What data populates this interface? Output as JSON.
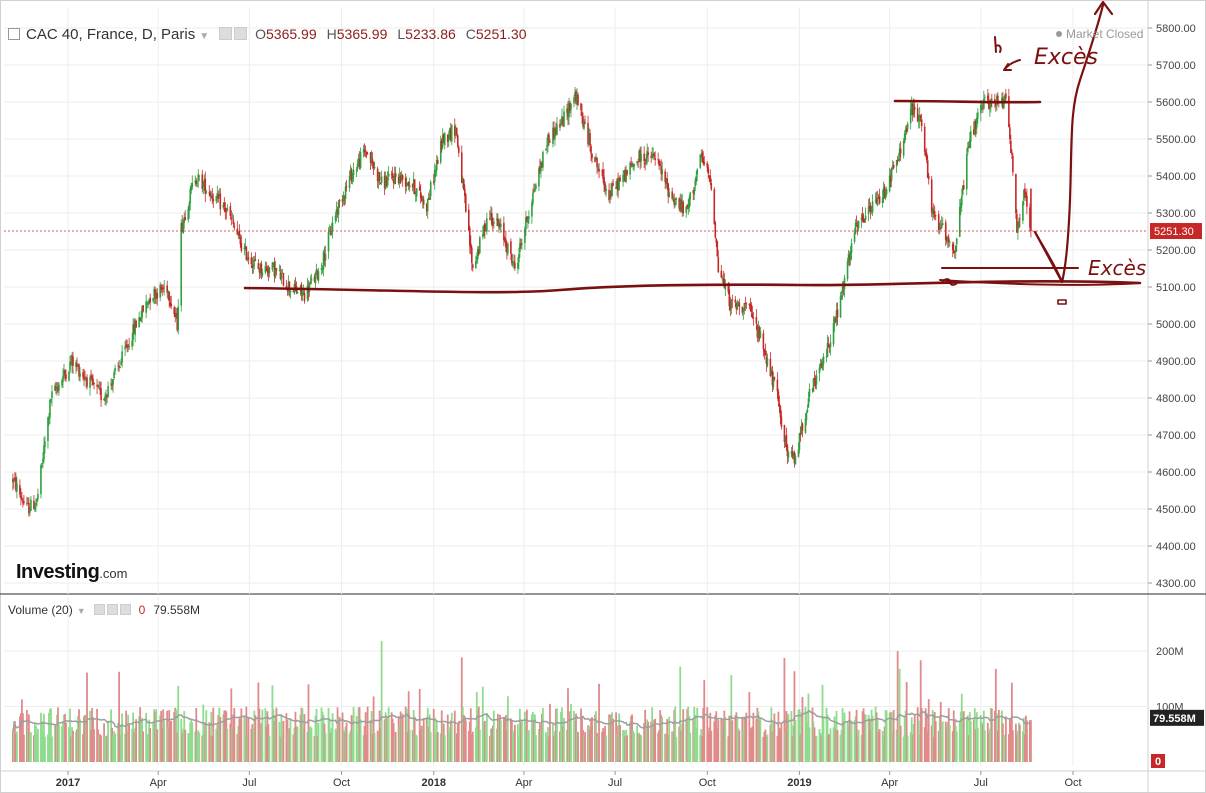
{
  "header": {
    "symbol": "CAC 40, France, D, Paris",
    "open_label": "O",
    "open": "5365.99",
    "high_label": "H",
    "high": "5365.99",
    "low_label": "L",
    "low": "5233.86",
    "close_label": "C",
    "close": "5251.30",
    "market_status": "Market Closed"
  },
  "volume_header": {
    "label": "Volume (20)",
    "zero": "0",
    "value": "79.558M"
  },
  "logo": {
    "name": "Investing",
    "domain": ".com"
  },
  "colors": {
    "up": "#2e9e3e",
    "down": "#c62828",
    "vol_up": "#8fdc8f",
    "vol_down": "#e08a8a",
    "ma": "#9e9e9e",
    "annotation": "#7b1010",
    "price_line": "#c62828"
  },
  "chart_data": {
    "type": "candlestick",
    "ylim": [
      4250,
      5850
    ],
    "y_ticks": [
      "5800.00",
      "5700.00",
      "5600.00",
      "5500.00",
      "5400.00",
      "5300.00",
      "5200.00",
      "5100.00",
      "5000.00",
      "4900.00",
      "4800.00",
      "4700.00",
      "4600.00",
      "4500.00",
      "4400.00",
      "4300.00"
    ],
    "x_ticks": [
      "2017",
      "Apr",
      "Jul",
      "Oct",
      "2018",
      "Apr",
      "Jul",
      "Oct",
      "2019",
      "Apr",
      "Jul",
      "Oct"
    ],
    "last_price": "5251.30",
    "price_path": [
      [
        "2016-11-07",
        4580
      ],
      [
        "2016-11-21",
        4500
      ],
      [
        "2016-12-01",
        4520
      ],
      [
        "2016-12-15",
        4800
      ],
      [
        "2017-01-05",
        4900
      ],
      [
        "2017-01-20",
        4850
      ],
      [
        "2017-02-05",
        4800
      ],
      [
        "2017-02-20",
        4880
      ],
      [
        "2017-03-10",
        5000
      ],
      [
        "2017-03-25",
        5080
      ],
      [
        "2017-04-10",
        5100
      ],
      [
        "2017-04-20",
        5000
      ],
      [
        "2017-04-24",
        5260
      ],
      [
        "2017-05-08",
        5400
      ],
      [
        "2017-05-25",
        5350
      ],
      [
        "2017-06-10",
        5300
      ],
      [
        "2017-06-25",
        5200
      ],
      [
        "2017-07-10",
        5150
      ],
      [
        "2017-07-25",
        5150
      ],
      [
        "2017-08-10",
        5100
      ],
      [
        "2017-08-25",
        5080
      ],
      [
        "2017-09-10",
        5150
      ],
      [
        "2017-09-25",
        5300
      ],
      [
        "2017-10-10",
        5400
      ],
      [
        "2017-10-25",
        5470
      ],
      [
        "2017-11-10",
        5380
      ],
      [
        "2017-11-25",
        5400
      ],
      [
        "2017-12-10",
        5380
      ],
      [
        "2017-12-25",
        5320
      ],
      [
        "2018-01-10",
        5500
      ],
      [
        "2018-01-23",
        5530
      ],
      [
        "2018-02-09",
        5150
      ],
      [
        "2018-02-25",
        5300
      ],
      [
        "2018-03-10",
        5250
      ],
      [
        "2018-03-23",
        5150
      ],
      [
        "2018-04-10",
        5350
      ],
      [
        "2018-04-25",
        5500
      ],
      [
        "2018-05-10",
        5550
      ],
      [
        "2018-05-22",
        5620
      ],
      [
        "2018-06-10",
        5450
      ],
      [
        "2018-06-25",
        5350
      ],
      [
        "2018-07-10",
        5400
      ],
      [
        "2018-07-25",
        5450
      ],
      [
        "2018-08-10",
        5450
      ],
      [
        "2018-08-25",
        5350
      ],
      [
        "2018-09-10",
        5300
      ],
      [
        "2018-09-25",
        5450
      ],
      [
        "2018-10-05",
        5380
      ],
      [
        "2018-10-12",
        5150
      ],
      [
        "2018-10-25",
        5050
      ],
      [
        "2018-11-10",
        5050
      ],
      [
        "2018-11-25",
        4950
      ],
      [
        "2018-12-10",
        4800
      ],
      [
        "2018-12-20",
        4650
      ],
      [
        "2018-12-27",
        4630
      ],
      [
        "2019-01-10",
        4800
      ],
      [
        "2019-01-25",
        4900
      ],
      [
        "2019-02-10",
        5050
      ],
      [
        "2019-02-25",
        5250
      ],
      [
        "2019-03-10",
        5300
      ],
      [
        "2019-03-25",
        5350
      ],
      [
        "2019-04-10",
        5450
      ],
      [
        "2019-04-23",
        5580
      ],
      [
        "2019-05-03",
        5550
      ],
      [
        "2019-05-13",
        5300
      ],
      [
        "2019-05-25",
        5250
      ],
      [
        "2019-06-05",
        5200
      ],
      [
        "2019-06-20",
        5500
      ],
      [
        "2019-07-05",
        5600
      ],
      [
        "2019-07-23",
        5600
      ],
      [
        "2019-07-26",
        5630
      ],
      [
        "2019-08-01",
        5450
      ],
      [
        "2019-08-06",
        5250
      ],
      [
        "2019-08-13",
        5350
      ],
      [
        "2019-08-20",
        5251
      ]
    ],
    "volume": {
      "y_ticks": [
        "200M",
        "100M"
      ],
      "ylim": [
        0,
        280
      ],
      "last": "79.558M",
      "zero_label": "0"
    }
  },
  "annotations": {
    "label_top": "Excès",
    "label_bottom": "Excès"
  }
}
